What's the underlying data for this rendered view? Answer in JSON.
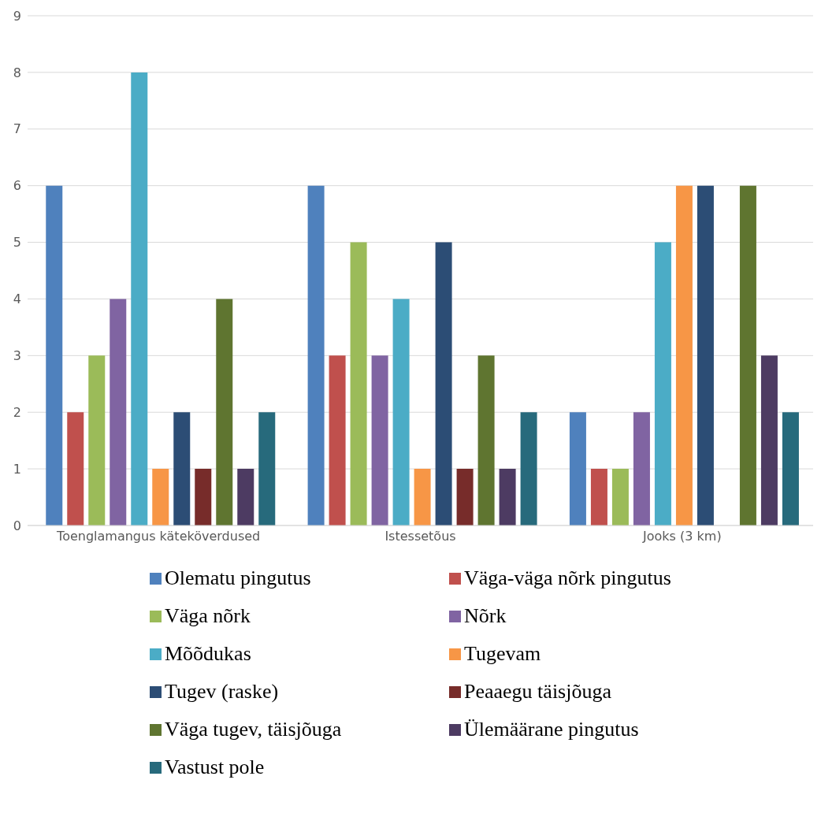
{
  "chart_data": {
    "type": "bar",
    "categories": [
      "Toenglamangus käteköverdused",
      "Istessetõus",
      "Jooks (3 km)"
    ],
    "series": [
      {
        "name": "Olematu pingutus",
        "color": "#4f81bd",
        "values": [
          6,
          6,
          2
        ]
      },
      {
        "name": "Väga-väga nõrk pingutus",
        "color": "#c0504d",
        "values": [
          2,
          3,
          1
        ]
      },
      {
        "name": "Väga nõrk",
        "color": "#9bbb59",
        "values": [
          3,
          5,
          1
        ]
      },
      {
        "name": "Nõrk",
        "color": "#8064a2",
        "values": [
          4,
          3,
          2
        ]
      },
      {
        "name": "Mõõdukas",
        "color": "#4bacc6",
        "values": [
          8,
          4,
          5
        ]
      },
      {
        "name": "Tugevam",
        "color": "#f79646",
        "values": [
          1,
          1,
          6
        ]
      },
      {
        "name": "Tugev (raske)",
        "color": "#2c4d75",
        "values": [
          2,
          5,
          6
        ]
      },
      {
        "name": "Peaaegu täisjõuga",
        "color": "#772c2a",
        "values": [
          1,
          1,
          0
        ]
      },
      {
        "name": "Väga tugev, täisjõuga",
        "color": "#5f7530",
        "values": [
          4,
          3,
          6
        ]
      },
      {
        "name": "Ülemäärane pingutus",
        "color": "#4d3b62",
        "values": [
          1,
          1,
          3
        ]
      },
      {
        "name": "Vastust pole",
        "color": "#276a7c",
        "values": [
          2,
          2,
          2
        ]
      }
    ],
    "ylim": [
      0,
      9
    ],
    "yticks": [
      0,
      1,
      2,
      3,
      4,
      5,
      6,
      7,
      8,
      9
    ],
    "grid": "y",
    "legend": "bottom"
  }
}
